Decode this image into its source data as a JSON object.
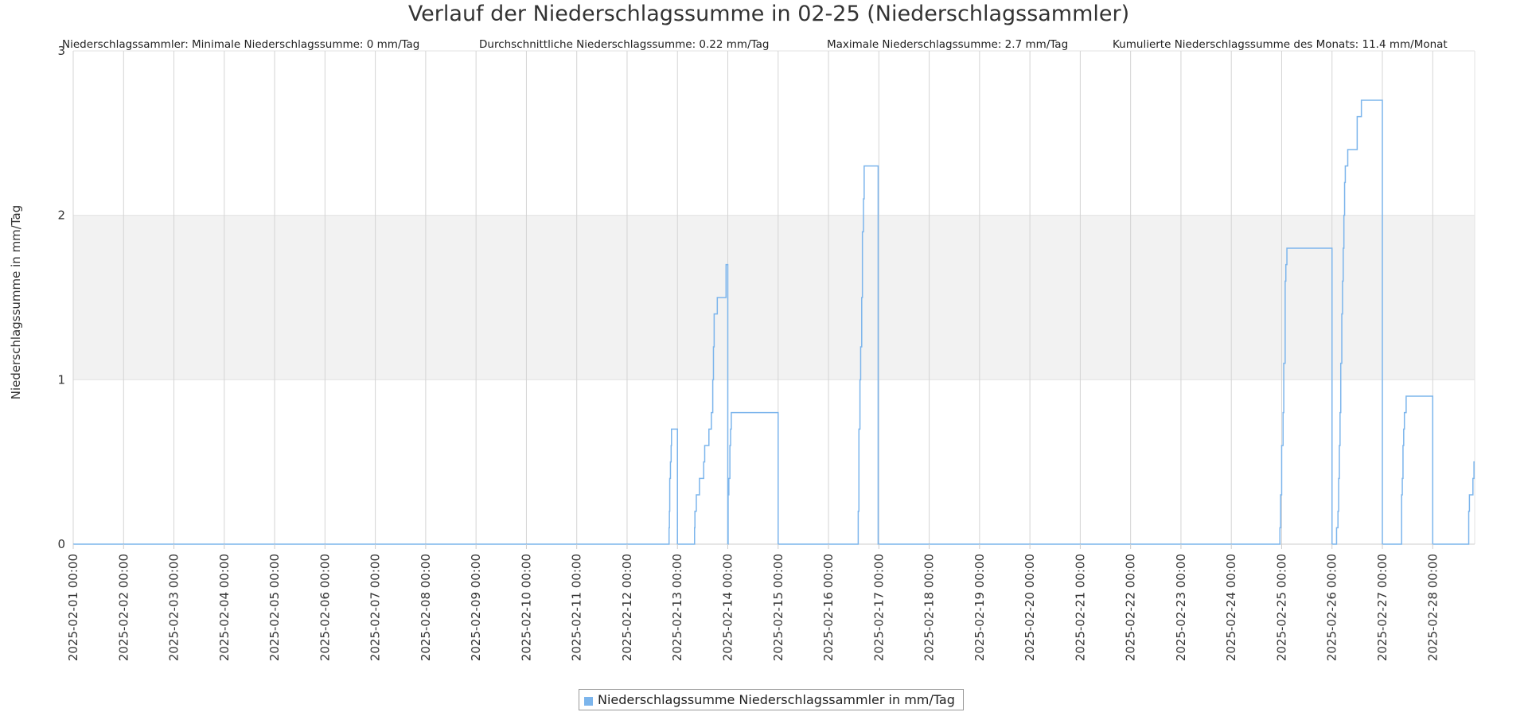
{
  "chart_data": {
    "type": "line",
    "title": "Verlauf der Niederschlagssumme in 02-25 (Niederschlagssammler)",
    "stats": {
      "min": "Niederschlagssammler: Minimale Niederschlagssumme: 0 mm/Tag",
      "avg": "Durchschnittliche Niederschlagssumme: 0.22 mm/Tag",
      "max": "Maximale Niederschlagssumme: 2.7 mm/Tag",
      "cumulative": "Kumulierte Niederschlagssumme des Monats: 11.4 mm/Monat"
    },
    "ylabel": "Niederschlagssumme in mm/Tag",
    "xlabel": "",
    "ylim": [
      0,
      3
    ],
    "xlim": [
      "2025-02-01 00:00",
      "2025-02-28 20:00"
    ],
    "yticks": [
      "0",
      "1",
      "2",
      "3"
    ],
    "xticks": [
      "2025-02-01 00:00",
      "2025-02-02 00:00",
      "2025-02-03 00:00",
      "2025-02-04 00:00",
      "2025-02-05 00:00",
      "2025-02-06 00:00",
      "2025-02-07 00:00",
      "2025-02-08 00:00",
      "2025-02-09 00:00",
      "2025-02-10 00:00",
      "2025-02-11 00:00",
      "2025-02-12 00:00",
      "2025-02-13 00:00",
      "2025-02-14 00:00",
      "2025-02-15 00:00",
      "2025-02-16 00:00",
      "2025-02-17 00:00",
      "2025-02-18 00:00",
      "2025-02-19 00:00",
      "2025-02-20 00:00",
      "2025-02-21 00:00",
      "2025-02-22 00:00",
      "2025-02-23 00:00",
      "2025-02-24 00:00",
      "2025-02-25 00:00",
      "2025-02-26 00:00",
      "2025-02-27 00:00",
      "2025-02-28 00:00"
    ],
    "grid": true,
    "band": {
      "y": [
        1,
        2
      ],
      "color": "#f2f2f2"
    },
    "legend_placement": "bottom-center",
    "series": [
      {
        "name": "Niederschlagssumme Niederschlagssammler in mm/Tag",
        "color": "#7cb5ec",
        "step": true,
        "points": [
          [
            "2025-02-01 00:00",
            0
          ],
          [
            "2025-02-12 19:50",
            0
          ],
          [
            "2025-02-12 20:00",
            0.1
          ],
          [
            "2025-02-12 20:10",
            0.2
          ],
          [
            "2025-02-12 20:20",
            0.4
          ],
          [
            "2025-02-12 20:40",
            0.5
          ],
          [
            "2025-02-12 21:00",
            0.6
          ],
          [
            "2025-02-12 21:10",
            0.7
          ],
          [
            "2025-02-13 00:00",
            0
          ],
          [
            "2025-02-13 08:00",
            0
          ],
          [
            "2025-02-13 08:10",
            0.1
          ],
          [
            "2025-02-13 08:20",
            0.2
          ],
          [
            "2025-02-13 09:00",
            0.3
          ],
          [
            "2025-02-13 10:30",
            0.4
          ],
          [
            "2025-02-13 12:30",
            0.5
          ],
          [
            "2025-02-13 13:00",
            0.6
          ],
          [
            "2025-02-13 15:00",
            0.7
          ],
          [
            "2025-02-13 16:10",
            0.8
          ],
          [
            "2025-02-13 16:50",
            1.0
          ],
          [
            "2025-02-13 17:10",
            1.2
          ],
          [
            "2025-02-13 17:30",
            1.4
          ],
          [
            "2025-02-13 19:00",
            1.5
          ],
          [
            "2025-02-13 23:10",
            1.7
          ],
          [
            "2025-02-14 00:00",
            0
          ],
          [
            "2025-02-14 00:10",
            0.3
          ],
          [
            "2025-02-14 00:30",
            0.4
          ],
          [
            "2025-02-14 01:00",
            0.6
          ],
          [
            "2025-02-14 01:20",
            0.7
          ],
          [
            "2025-02-14 01:40",
            0.8
          ],
          [
            "2025-02-15 00:00",
            0
          ],
          [
            "2025-02-16 14:00",
            0
          ],
          [
            "2025-02-16 14:10",
            0.2
          ],
          [
            "2025-02-16 14:30",
            0.7
          ],
          [
            "2025-02-16 15:00",
            1.0
          ],
          [
            "2025-02-16 15:20",
            1.2
          ],
          [
            "2025-02-16 15:50",
            1.5
          ],
          [
            "2025-02-16 16:10",
            1.9
          ],
          [
            "2025-02-16 16:40",
            2.1
          ],
          [
            "2025-02-16 17:00",
            2.3
          ],
          [
            "2025-02-16 23:40",
            0
          ],
          [
            "2025-02-24 23:00",
            0
          ],
          [
            "2025-02-24 23:10",
            0.1
          ],
          [
            "2025-02-24 23:30",
            0.3
          ],
          [
            "2025-02-25 00:00",
            0.6
          ],
          [
            "2025-02-25 00:40",
            0.8
          ],
          [
            "2025-02-25 01:00",
            1.1
          ],
          [
            "2025-02-25 01:40",
            1.6
          ],
          [
            "2025-02-25 02:00",
            1.7
          ],
          [
            "2025-02-25 02:30",
            1.8
          ],
          [
            "2025-02-26 00:00",
            0
          ],
          [
            "2025-02-26 02:10",
            0.1
          ],
          [
            "2025-02-26 02:50",
            0.2
          ],
          [
            "2025-02-26 03:10",
            0.4
          ],
          [
            "2025-02-26 03:30",
            0.6
          ],
          [
            "2025-02-26 03:50",
            0.8
          ],
          [
            "2025-02-26 04:10",
            1.1
          ],
          [
            "2025-02-26 04:40",
            1.4
          ],
          [
            "2025-02-26 05:00",
            1.6
          ],
          [
            "2025-02-26 05:20",
            1.8
          ],
          [
            "2025-02-26 05:40",
            2.0
          ],
          [
            "2025-02-26 06:00",
            2.2
          ],
          [
            "2025-02-26 06:20",
            2.3
          ],
          [
            "2025-02-26 07:30",
            2.4
          ],
          [
            "2025-02-26 12:00",
            2.6
          ],
          [
            "2025-02-26 14:00",
            2.7
          ],
          [
            "2025-02-27 00:00",
            0
          ],
          [
            "2025-02-27 09:00",
            0
          ],
          [
            "2025-02-27 09:10",
            0.3
          ],
          [
            "2025-02-27 09:30",
            0.4
          ],
          [
            "2025-02-27 09:50",
            0.6
          ],
          [
            "2025-02-27 10:10",
            0.7
          ],
          [
            "2025-02-27 10:30",
            0.8
          ],
          [
            "2025-02-27 11:20",
            0.9
          ],
          [
            "2025-02-28 00:00",
            0
          ],
          [
            "2025-02-28 17:00",
            0
          ],
          [
            "2025-02-28 17:10",
            0.2
          ],
          [
            "2025-02-28 17:30",
            0.3
          ],
          [
            "2025-02-28 19:10",
            0.4
          ],
          [
            "2025-02-28 19:40",
            0.5
          ],
          [
            "2025-02-28 20:00",
            0.5
          ]
        ]
      }
    ]
  }
}
